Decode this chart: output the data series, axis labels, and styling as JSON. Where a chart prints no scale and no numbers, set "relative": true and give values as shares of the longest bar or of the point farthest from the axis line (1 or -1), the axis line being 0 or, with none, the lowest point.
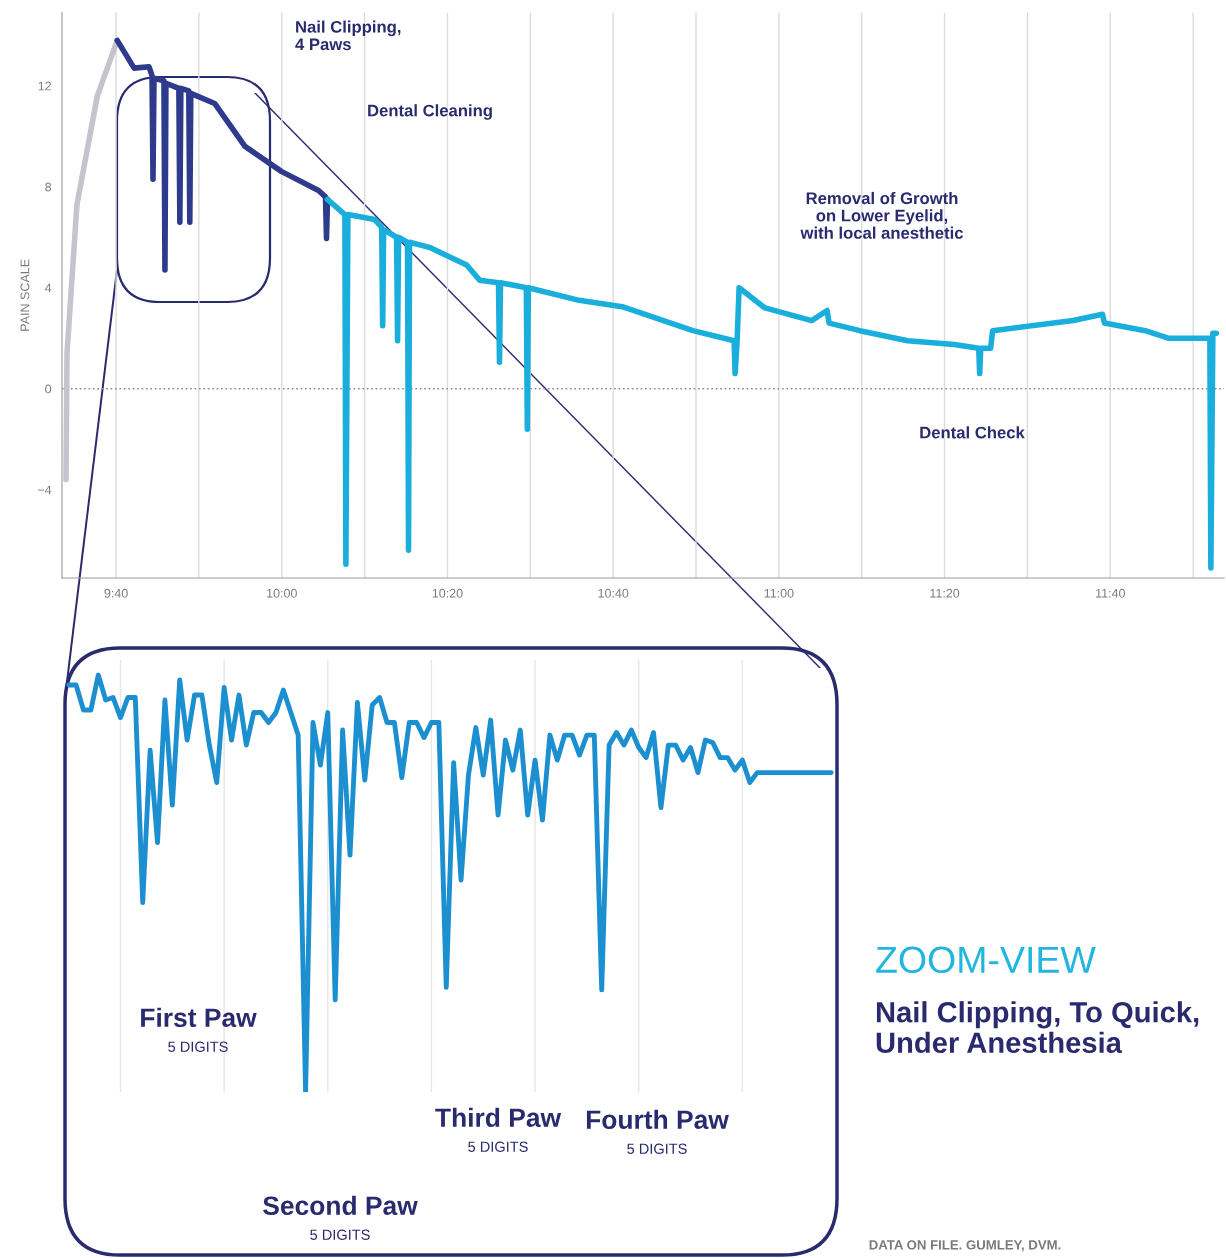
{
  "chart_data": [
    {
      "type": "line",
      "ylabel": "PAIN SCALE",
      "xlim": [
        9.558,
        11.896
      ],
      "ylim": [
        -7.5,
        14.9
      ],
      "xticks": [
        {
          "value": 9.6667,
          "label": "9:40"
        },
        {
          "value": 9.8333,
          "label": null
        },
        {
          "value": 10.0,
          "label": "10:00"
        },
        {
          "value": 10.1667,
          "label": null
        },
        {
          "value": 10.3333,
          "label": "10:20"
        },
        {
          "value": 10.5,
          "label": null
        },
        {
          "value": 10.6667,
          "label": "10:40"
        },
        {
          "value": 10.8333,
          "label": null
        },
        {
          "value": 11.0,
          "label": "11:00"
        },
        {
          "value": 11.1667,
          "label": null
        },
        {
          "value": 11.3333,
          "label": "11:20"
        },
        {
          "value": 11.5,
          "label": null
        },
        {
          "value": 11.6667,
          "label": "11:40"
        },
        {
          "value": 11.8333,
          "label": null
        }
      ],
      "yticks": [
        {
          "value": -4,
          "label": "−4"
        },
        0,
        4,
        8,
        12
      ],
      "grid": "x",
      "legend": false,
      "marker": "none",
      "line_style": "solid",
      "ref_lines": [
        {
          "axis": "y",
          "value": 0,
          "color": "#8c8c8c",
          "line_style": "dotted"
        }
      ],
      "annotations": [
        "Nail Clipping,\n4 Paws",
        "Dental Cleaning",
        "Removal of Growth\non Lower Eyelid,\nwith local anesthetic",
        "Dental Check"
      ],
      "series": [
        {
          "color": "#c4c4cc",
          "x": [
            9.566,
            9.568,
            9.588,
            9.629,
            9.669
          ],
          "values": [
            -3.6,
            1.4,
            7.3,
            11.6,
            13.8
          ]
        },
        {
          "color": "#2e3a8c",
          "x": [
            9.669,
            9.703,
            9.733,
            9.739,
            9.741,
            9.743,
            9.763,
            9.765,
            9.767,
            9.793,
            9.795,
            9.797,
            9.813,
            9.815,
            9.817,
            9.865,
            9.926,
            10.0,
            10.074,
            10.088,
            10.09,
            10.092
          ],
          "values": [
            13.8,
            12.7,
            12.75,
            12.4,
            8.3,
            12.3,
            12.2,
            4.7,
            12.1,
            11.9,
            6.6,
            11.9,
            11.8,
            6.6,
            11.7,
            11.3,
            9.6,
            8.6,
            7.85,
            7.6,
            5.95,
            7.5
          ]
        },
        {
          "color": "#1aaedc",
          "x": [
            10.092,
            10.127,
            10.129,
            10.133,
            10.187,
            10.201,
            10.203,
            10.205,
            10.231,
            10.233,
            10.235,
            10.253,
            10.255,
            10.257,
            10.297,
            10.372,
            10.398,
            10.436,
            10.438,
            10.44,
            10.492,
            10.494,
            10.496,
            10.598,
            10.685,
            10.827,
            10.91,
            10.912,
            10.916,
            10.92,
            10.972,
            11.066,
            11.097,
            11.101,
            11.163,
            11.259,
            11.353,
            11.402,
            11.404,
            11.406,
            11.426,
            11.43,
            11.592,
            11.651,
            11.655,
            11.737,
            11.783,
            11.851,
            11.867,
            11.869,
            11.873,
            11.88
          ],
          "values": [
            7.5,
            6.9,
            -6.95,
            6.9,
            6.7,
            6.4,
            2.5,
            6.3,
            6.0,
            1.9,
            6.0,
            5.8,
            -6.4,
            5.8,
            5.6,
            4.9,
            4.3,
            4.2,
            1.05,
            4.2,
            4.0,
            -1.6,
            4.0,
            3.5,
            3.25,
            2.3,
            1.9,
            0.6,
            1.9,
            4.0,
            3.2,
            2.7,
            3.1,
            2.6,
            2.3,
            1.9,
            1.75,
            1.6,
            0.6,
            1.6,
            1.6,
            2.3,
            2.7,
            2.95,
            2.6,
            2.3,
            2.0,
            2.0,
            2.0,
            -7.1,
            2.2,
            2.2
          ]
        }
      ]
    },
    {
      "type": "line",
      "relative": true,
      "grid": "x",
      "legend": false,
      "marker": "none",
      "line_style": "solid",
      "annotations": [
        "First Paw",
        "5 DIGITS",
        "Second Paw",
        "5 DIGITS",
        "Third Paw",
        "5 DIGITS",
        "Fourth Paw",
        "5 DIGITS",
        "ZOOM-VIEW",
        "Nail Clipping, To Quick,\nUnder Anesthesia",
        "DATA ON FILE. GUMLEY, DVM."
      ],
      "categories": [
        null,
        null,
        null,
        null,
        null,
        null,
        null,
        null,
        null,
        null,
        null,
        null,
        null,
        null,
        null,
        null,
        null,
        null,
        null,
        null,
        null,
        null,
        null,
        null,
        null,
        null,
        null,
        null,
        null,
        null,
        null,
        null,
        null,
        null,
        null,
        null,
        null,
        null,
        null,
        null,
        null,
        null,
        null,
        null,
        null,
        null,
        null,
        null,
        null,
        null,
        null,
        null,
        null,
        null,
        null,
        null,
        null,
        null,
        null,
        null,
        null,
        null,
        null,
        null,
        null,
        null,
        null,
        null,
        null,
        null,
        null,
        null,
        null,
        null,
        null,
        null,
        null,
        null,
        null,
        null,
        null,
        null,
        null,
        null,
        null,
        null,
        null,
        null,
        null,
        null,
        null,
        null,
        null,
        null,
        null,
        null,
        null,
        null,
        null,
        null,
        null,
        null,
        null,
        null
      ],
      "series": [
        {
          "color": "#1b8fcf",
          "values": [
            0.976,
            0.976,
            0.916,
            0.916,
            1.0,
            0.94,
            0.946,
            0.898,
            0.946,
            0.946,
            0.454,
            0.82,
            0.598,
            0.94,
            0.688,
            0.988,
            0.844,
            0.952,
            0.952,
            0.832,
            0.742,
            0.97,
            0.844,
            0.952,
            0.832,
            0.91,
            0.91,
            0.886,
            0.91,
            0.964,
            0.91,
            0.856,
            0.0,
            0.886,
            0.784,
            0.91,
            0.221,
            0.868,
            0.568,
            0.934,
            0.748,
            0.928,
            0.946,
            0.886,
            0.886,
            0.754,
            0.886,
            0.886,
            0.85,
            0.886,
            0.886,
            0.251,
            0.79,
            0.508,
            0.76,
            0.874,
            0.76,
            0.892,
            0.664,
            0.844,
            0.772,
            0.868,
            0.664,
            0.796,
            0.652,
            0.856,
            0.796,
            0.856,
            0.856,
            0.808,
            0.856,
            0.856,
            0.245,
            0.832,
            0.862,
            0.832,
            0.868,
            0.826,
            0.802,
            0.862,
            0.682,
            0.832,
            0.832,
            0.796,
            0.826,
            0.766,
            0.844,
            0.838,
            0.802,
            0.802,
            0.772,
            0.796,
            0.742,
            0.766,
            0.766,
            0.766,
            0.766,
            0.766,
            0.766,
            0.766,
            0.766,
            0.766,
            0.766,
            0.766
          ]
        }
      ]
    }
  ]
}
